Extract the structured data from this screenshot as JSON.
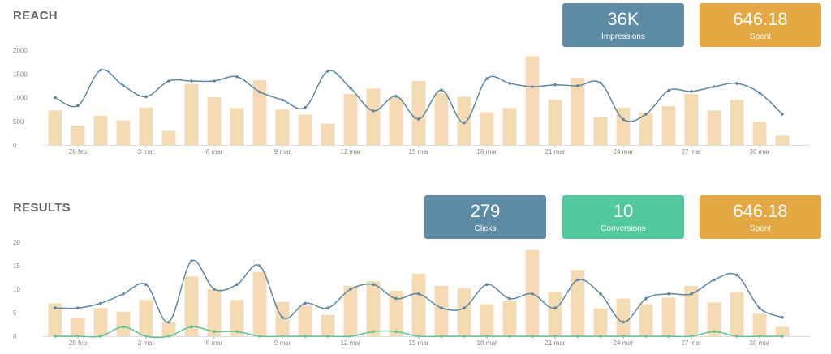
{
  "reach": {
    "title": "REACH",
    "cards": [
      {
        "value": "36K",
        "label": "Impressions",
        "color": "#5e8ba6"
      },
      {
        "value": "646.18",
        "label": "Spent",
        "color": "#e4a843"
      }
    ]
  },
  "results": {
    "title": "RESULTS",
    "cards": [
      {
        "value": "279",
        "label": "Clicks",
        "color": "#5e8ba6"
      },
      {
        "value": "10",
        "label": "Conversions",
        "color": "#52c99c"
      },
      {
        "value": "646.18",
        "label": "Spent",
        "color": "#e4a843"
      }
    ]
  },
  "colors": {
    "bar": "#f5dbb3",
    "line": "#5b87a3",
    "green_line": "#5cc498",
    "axis": "#dddddd"
  },
  "chart_data": [
    {
      "type": "bar",
      "title": "REACH",
      "x_tick_labels": [
        "28 feb",
        "3 mar",
        "6 mar",
        "9 mar",
        "12 mar",
        "15 mar",
        "18 mar",
        "21 mar",
        "24 mar",
        "27 mar",
        "30 mar"
      ],
      "y_ticks": [
        0,
        500,
        1000,
        1500,
        2000
      ],
      "ylim": [
        0,
        2000
      ],
      "series": [
        {
          "type": "bar",
          "values": [
            730,
            410,
            620,
            520,
            790,
            300,
            1290,
            1010,
            780,
            1370,
            750,
            640,
            450,
            1080,
            1190,
            1000,
            1350,
            1100,
            1020,
            690,
            780,
            1870,
            950,
            1420,
            600,
            790,
            680,
            820,
            1080,
            730,
            950,
            490,
            200
          ]
        },
        {
          "type": "line",
          "values": [
            1000,
            830,
            1580,
            1250,
            1020,
            1350,
            1350,
            1350,
            1440,
            1120,
            950,
            790,
            1560,
            1200,
            720,
            1030,
            550,
            1160,
            470,
            1400,
            1300,
            1230,
            1270,
            1250,
            1310,
            540,
            650,
            1150,
            1130,
            1230,
            1300,
            1100,
            650
          ]
        }
      ]
    },
    {
      "type": "bar",
      "title": "RESULTS",
      "x_tick_labels": [
        "28 feb",
        "3 mar",
        "6 mar",
        "9 mar",
        "12 mar",
        "15 mar",
        "18 mar",
        "21 mar",
        "24 mar",
        "27 mar",
        "30 mar"
      ],
      "y_ticks": [
        0,
        5,
        10,
        15,
        20
      ],
      "ylim": [
        0,
        20
      ],
      "series": [
        {
          "type": "bar",
          "values": [
            7,
            4,
            6,
            5.2,
            7.7,
            3,
            12.7,
            10,
            7.7,
            13.7,
            7.3,
            6.5,
            4.5,
            10.7,
            11.7,
            9.7,
            13.3,
            10.7,
            10.2,
            6.8,
            7.6,
            18.5,
            9.5,
            14.1,
            5.9,
            8,
            6.8,
            8.2,
            10.7,
            7.2,
            9.4,
            4.8,
            2
          ]
        },
        {
          "type": "line",
          "values": [
            6,
            6,
            7,
            9,
            11,
            3,
            16,
            10,
            11,
            15,
            4,
            7,
            6,
            10,
            11,
            8,
            9,
            6,
            6,
            11,
            8,
            9,
            6,
            12,
            9,
            3,
            8,
            9,
            9,
            12,
            13,
            6,
            4
          ]
        },
        {
          "type": "line",
          "values": [
            0,
            0,
            0,
            2,
            0,
            0,
            2,
            1,
            1,
            0,
            0,
            0,
            0,
            0,
            1,
            1,
            0,
            0,
            0,
            0,
            0,
            0,
            0,
            0,
            0,
            0,
            0,
            0,
            0,
            1,
            0,
            0,
            0
          ]
        }
      ]
    }
  ]
}
